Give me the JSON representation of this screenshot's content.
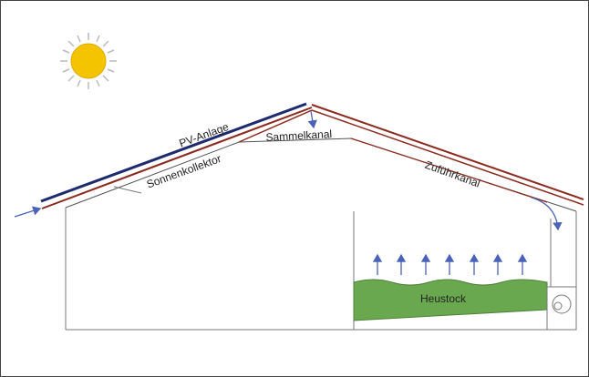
{
  "labels": {
    "pv": "PV-Anlage",
    "collector": "Sonnenkollektor",
    "collecting_duct": "Sammelkanal",
    "supply_duct": "Zuführkanal",
    "hay": "Heustock"
  }
}
